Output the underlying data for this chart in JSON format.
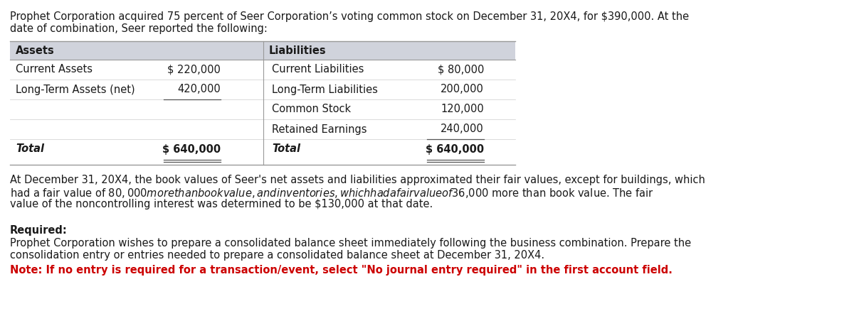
{
  "intro_text_line1": "Prophet Corporation acquired 75 percent of Seer Corporation’s voting common stock on December 31, 20X4, for $390,000. At the",
  "intro_text_line2": "date of combination, Seer reported the following:",
  "table": {
    "header_bg": "#d0d3dc",
    "row_bg_odd": "#ffffff",
    "row_bg_even": "#f5f5f5",
    "border_color": "#aaaaaa",
    "assets_header": "Assets",
    "liabilities_header": "Liabilities",
    "assets_rows": [
      {
        "label": "Current Assets",
        "value": "$ 220,000"
      },
      {
        "label": "Long-Term Assets (net)",
        "value": "420,000"
      },
      {
        "label": "",
        "value": ""
      },
      {
        "label": "",
        "value": ""
      }
    ],
    "liabilities_rows": [
      {
        "label": "Current Liabilities",
        "value": "$ 80,000"
      },
      {
        "label": "Long-Term Liabilities",
        "value": "200,000"
      },
      {
        "label": "Common Stock",
        "value": "120,000"
      },
      {
        "label": "Retained Earnings",
        "value": "240,000"
      }
    ],
    "assets_total_label": "Total",
    "assets_total_value": "$ 640,000",
    "liabilities_total_label": "Total",
    "liabilities_total_value": "$ 640,000"
  },
  "middle_text_line1": "At December 31, 20X4, the book values of Seer's net assets and liabilities approximated their fair values, except for buildings, which",
  "middle_text_line2": "had a fair value of $80,000 more than book value, and inventories, which had a fair value of $36,000 more than book value. The fair",
  "middle_text_line3": "value of the noncontrolling interest was determined to be $130,000 at that date.",
  "required_bold": "Required:",
  "required_text_line1": "Prophet Corporation wishes to prepare a consolidated balance sheet immediately following the business combination. Prepare the",
  "required_text_line2": "consolidation entry or entries needed to prepare a consolidated balance sheet at December 31, 20X4.",
  "note_text": "Note: If no entry is required for a transaction/event, select \"No journal entry required\" in the first account field.",
  "bg_color": "#ffffff",
  "text_color": "#1a1a1a",
  "note_color": "#cc0000",
  "font_size": 10.5,
  "table_font_size": 10.5
}
